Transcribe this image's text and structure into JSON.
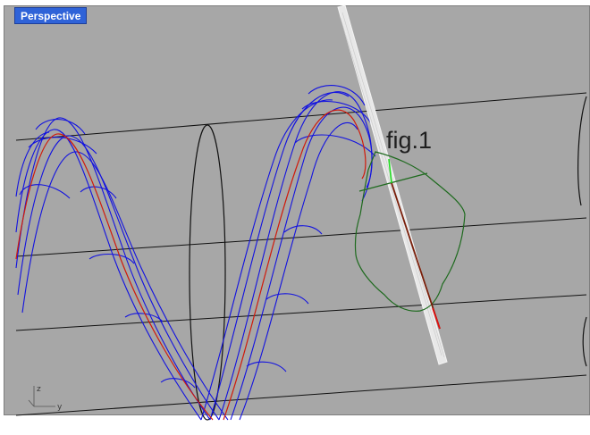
{
  "viewport": {
    "tab_label": "Perspective",
    "annotation": "fig.1",
    "axis_labels": {
      "z": "z",
      "y": "y"
    }
  },
  "colors": {
    "background": "#a7a7a7",
    "grid_lines": "#111111",
    "tube_wire": "#1212e0",
    "rail_curve": "#d01a0a",
    "section_curve": "#1e6a1e",
    "plane": "#e8e8e8",
    "tab": "#2f63d8"
  }
}
